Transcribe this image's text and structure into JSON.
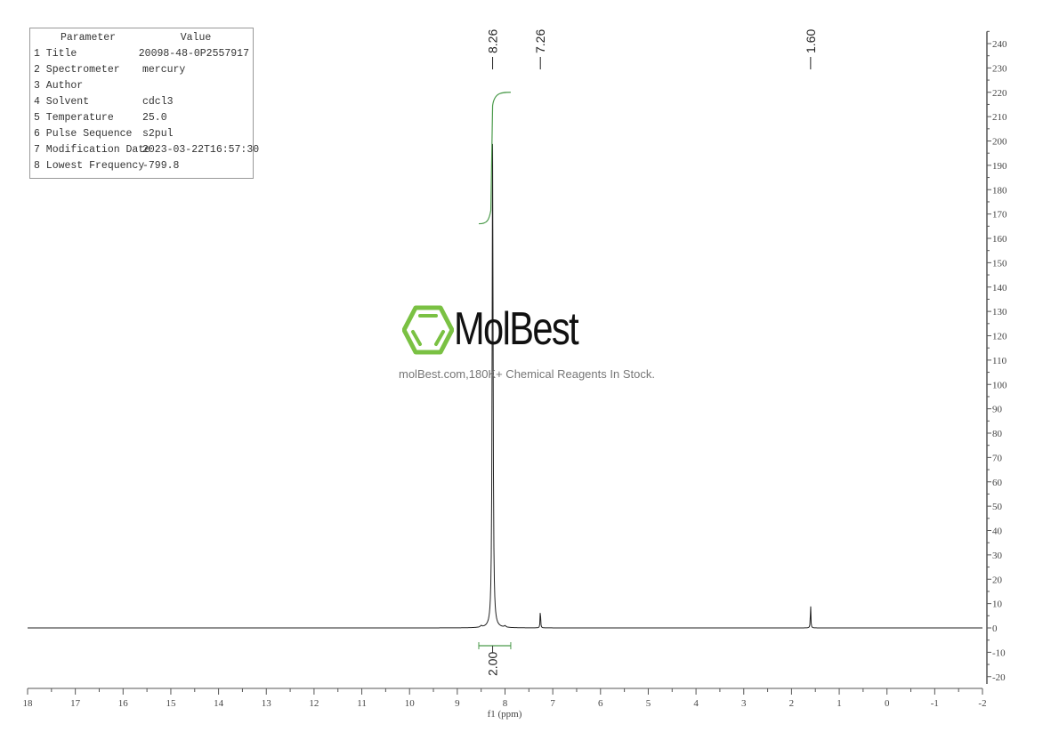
{
  "chart_data": {
    "type": "line",
    "xlabel": "f1 (ppm)",
    "xlim": [
      18,
      -2
    ],
    "ylim": [
      -23,
      245
    ],
    "x_ticks": [
      18,
      17,
      16,
      15,
      14,
      13,
      12,
      11,
      10,
      9,
      8,
      7,
      6,
      5,
      4,
      3,
      2,
      1,
      0,
      -1,
      -2
    ],
    "y_ticks": [
      -20,
      -10,
      0,
      10,
      20,
      30,
      40,
      50,
      60,
      70,
      80,
      90,
      100,
      110,
      120,
      130,
      140,
      150,
      160,
      170,
      180,
      190,
      200,
      210,
      220,
      230,
      240
    ],
    "grid": false,
    "peaks": [
      {
        "ppm": 8.26,
        "height": 200,
        "label": "8.26"
      },
      {
        "ppm": 7.26,
        "height": 8.5,
        "label": "7.26"
      },
      {
        "ppm": 1.6,
        "height": 10.5,
        "label": "1.60"
      }
    ],
    "integrals": [
      {
        "from_ppm": 8.55,
        "to_ppm": 7.88,
        "value_label": "2.00",
        "curve_start": 166,
        "curve_end": 220
      }
    ],
    "colors": {
      "spectrum": "#222222",
      "integral": "#4a9a4a",
      "axis": "#555555"
    }
  },
  "parameters": {
    "header": {
      "param": "Parameter",
      "value": "Value"
    },
    "rows": [
      {
        "param": "1 Title",
        "value": "20098-48-0P2557917"
      },
      {
        "param": "2 Spectrometer",
        "value": "mercury"
      },
      {
        "param": "3 Author",
        "value": ""
      },
      {
        "param": "4 Solvent",
        "value": "cdcl3"
      },
      {
        "param": "5 Temperature",
        "value": "25.0"
      },
      {
        "param": "6 Pulse Sequence",
        "value": "s2pul"
      },
      {
        "param": "7 Modification Date",
        "value": "2023-03-22T16:57:30"
      },
      {
        "param": "8 Lowest Frequency",
        "value": "-799.8"
      }
    ]
  },
  "watermark": {
    "brand": "MolBest",
    "tagline": "molBest.com,180K+ Chemical Reagents In Stock.",
    "logo_color": "#7ac143"
  }
}
